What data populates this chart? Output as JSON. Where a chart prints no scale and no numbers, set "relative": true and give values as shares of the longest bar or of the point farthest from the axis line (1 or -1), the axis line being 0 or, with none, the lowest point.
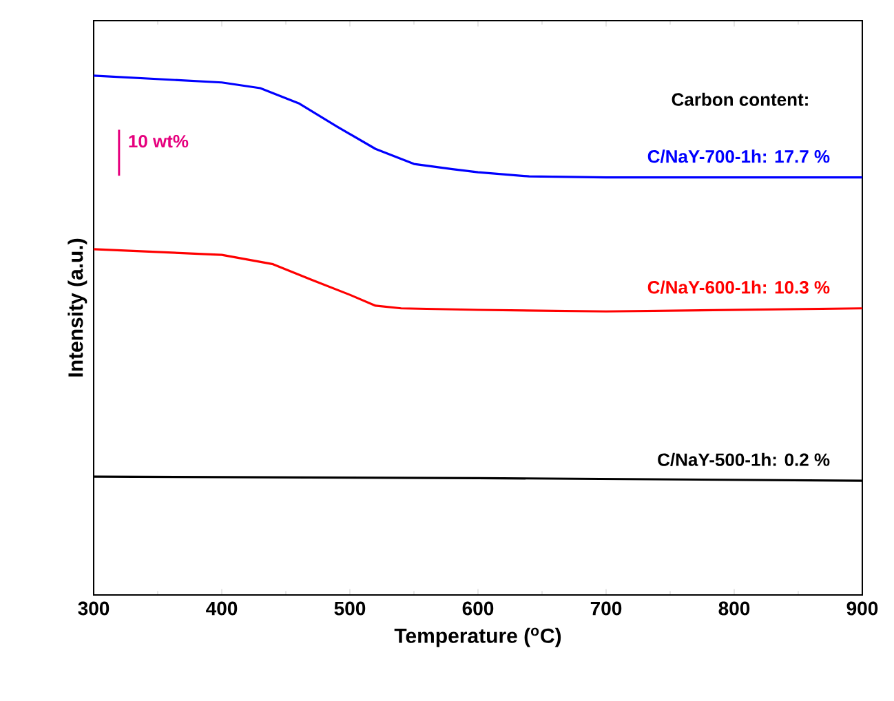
{
  "chart_data": {
    "type": "line",
    "xlabel": "Temperature ($^{o}$C)",
    "ylabel": "Intensity (a.u.)",
    "relative": true,
    "xlim": [
      300,
      900
    ],
    "xticks": [
      300,
      400,
      500,
      600,
      700,
      800,
      900
    ],
    "annotations": [
      "Carbon content:",
      "10 wt%"
    ],
    "series": [
      {
        "name": "C/NaY-700-1h: 17.7 %",
        "color": "#0000ff",
        "x": [
          300,
          400,
          430,
          460,
          490,
          520,
          550,
          580,
          600,
          640,
          700,
          800,
          900
        ],
        "values": [
          1.0,
          0.987,
          0.976,
          0.947,
          0.902,
          0.859,
          0.83,
          0.82,
          0.814,
          0.806,
          0.804,
          0.804,
          0.804
        ]
      },
      {
        "name": "C/NaY-600-1h: 10.3 %",
        "color": "#ff0000",
        "x": [
          300,
          400,
          440,
          470,
          500,
          520,
          540,
          600,
          700,
          900
        ],
        "values": [
          0.666,
          0.655,
          0.637,
          0.607,
          0.578,
          0.557,
          0.552,
          0.549,
          0.546,
          0.552
        ]
      },
      {
        "name": "C/NaY-500-1h: 0.2 %",
        "color": "#000000",
        "x": [
          300,
          600,
          900
        ],
        "values": [
          0.228,
          0.225,
          0.22
        ]
      }
    ]
  }
}
